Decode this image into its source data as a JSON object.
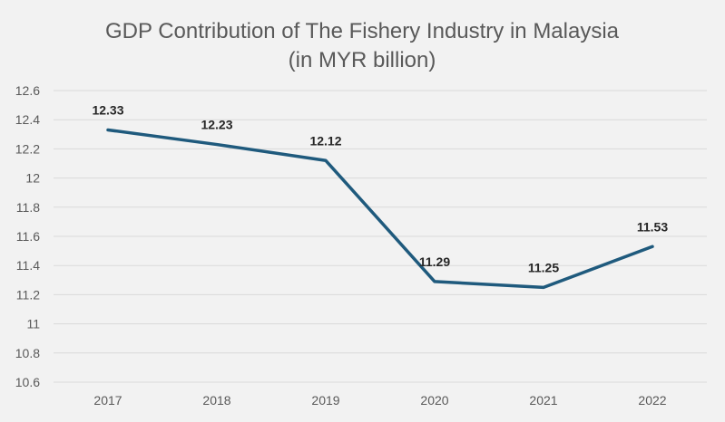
{
  "chart_data": {
    "type": "line",
    "title": [
      "GDP Contribution of The Fishery Industry in Malaysia",
      "(in MYR billion)"
    ],
    "categories": [
      "2017",
      "2018",
      "2019",
      "2020",
      "2021",
      "2022"
    ],
    "values": [
      12.33,
      12.23,
      12.12,
      11.29,
      11.25,
      11.53
    ],
    "data_labels": [
      "12.33",
      "12.23",
      "12.12",
      "11.29",
      "11.25",
      "11.53"
    ],
    "ylim": [
      10.6,
      12.6
    ],
    "yticks": [
      "10.6",
      "10.8",
      "11",
      "11.2",
      "11.4",
      "11.6",
      "11.8",
      "12",
      "12.2",
      "12.4",
      "12.6"
    ],
    "grid": true,
    "line_color": "#1f5a7d",
    "background": "#f2f2f2"
  }
}
